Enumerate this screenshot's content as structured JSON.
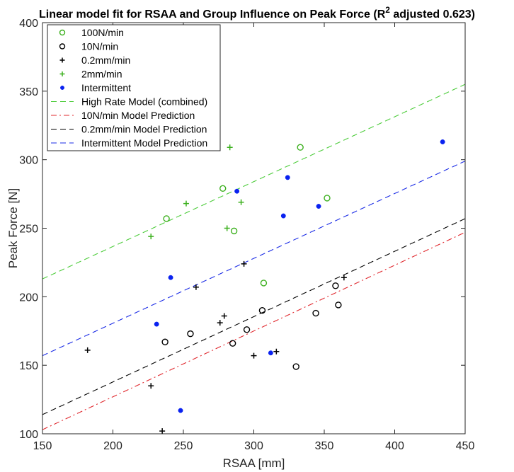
{
  "chart_data": {
    "type": "scatter",
    "title": {
      "prefix": "Linear model fit for RSAA and Group Influence on Peak Force (R",
      "sup": "2",
      "suffix": " adjusted 0.623)"
    },
    "xlabel": "RSAA [mm]",
    "ylabel": "Peak Force [N]",
    "xlim": [
      150,
      450
    ],
    "ylim": [
      100,
      400
    ],
    "xticks": [
      150,
      200,
      250,
      300,
      350,
      400,
      450
    ],
    "yticks": [
      100,
      150,
      200,
      250,
      300,
      350,
      400
    ],
    "grid": false,
    "legend_position": "top-left",
    "series": [
      {
        "name": "100N/min",
        "kind": "scatter",
        "marker": "circle-open",
        "color": "#3cb01e",
        "points": [
          [
            238,
            257
          ],
          [
            278,
            279
          ],
          [
            286,
            248
          ],
          [
            307,
            210
          ],
          [
            333,
            309
          ],
          [
            352,
            272
          ]
        ]
      },
      {
        "name": "10N/min",
        "kind": "scatter",
        "marker": "circle-open",
        "color": "#000000",
        "points": [
          [
            237,
            167
          ],
          [
            255,
            173
          ],
          [
            285,
            166
          ],
          [
            295,
            176
          ],
          [
            306,
            190
          ],
          [
            330,
            149
          ],
          [
            344,
            188
          ],
          [
            358,
            208
          ],
          [
            360,
            194
          ]
        ]
      },
      {
        "name": "0.2mm/min",
        "kind": "scatter",
        "marker": "plus",
        "color": "#000000",
        "points": [
          [
            182,
            161
          ],
          [
            227,
            135
          ],
          [
            235,
            102
          ],
          [
            259,
            207
          ],
          [
            276,
            181
          ],
          [
            279,
            186
          ],
          [
            293,
            224
          ],
          [
            300,
            157
          ],
          [
            316,
            160
          ],
          [
            364,
            214
          ]
        ]
      },
      {
        "name": "2mm/min",
        "kind": "scatter",
        "marker": "plus",
        "color": "#3cb01e",
        "points": [
          [
            227,
            244
          ],
          [
            252,
            268
          ],
          [
            281,
            250
          ],
          [
            283,
            309
          ],
          [
            291,
            269
          ]
        ]
      },
      {
        "name": "Intermittent",
        "kind": "scatter",
        "marker": "dot",
        "color": "#0a22f0",
        "points": [
          [
            231,
            180
          ],
          [
            241,
            214
          ],
          [
            248,
            117
          ],
          [
            288,
            277
          ],
          [
            312,
            159
          ],
          [
            321,
            259
          ],
          [
            324,
            287
          ],
          [
            346,
            266
          ],
          [
            434,
            313
          ]
        ]
      },
      {
        "name": "High Rate Model (combined)",
        "kind": "line",
        "dash": "dashed",
        "color": "#4ccc3a",
        "x": [
          150,
          450
        ],
        "y": [
          213,
          355
        ]
      },
      {
        "name": "10N/min Model Prediction",
        "kind": "line",
        "dash": "dashdot",
        "color": "#e0282e",
        "x": [
          150,
          450
        ],
        "y": [
          103,
          247
        ]
      },
      {
        "name": "0.2mm/min Model Prediction",
        "kind": "line",
        "dash": "dashed",
        "color": "#000000",
        "x": [
          150,
          450
        ],
        "y": [
          114,
          257
        ]
      },
      {
        "name": "Intermittent Model Prediction",
        "kind": "line",
        "dash": "dashed",
        "color": "#1a2be6",
        "x": [
          150,
          450
        ],
        "y": [
          157,
          299
        ]
      }
    ]
  }
}
